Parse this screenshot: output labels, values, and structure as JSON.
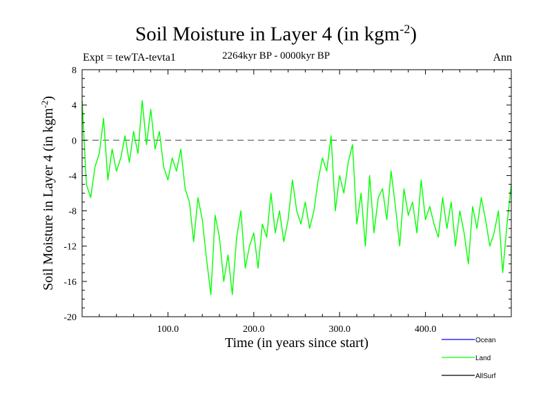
{
  "header": {
    "title": "Soil Moisture in Layer 4 (in kgm",
    "title_sup": "-2",
    "title_end": ")",
    "expt": "Expt = tewTA-tevta1",
    "period": "2264kyr BP - 0000kyr BP",
    "season": "Ann"
  },
  "chart_data": {
    "type": "line",
    "title": "Soil Moisture in Layer 4 (in kgm-2)",
    "xlabel": "Time (in years since start)",
    "ylabel": "Soil Moisture in Layer 4 (in kgm-2)",
    "ylabel_main": "Soil Moisture in Layer 4 (in kgm",
    "ylabel_sup": "-2",
    "ylabel_end": ")",
    "xlim": [
      0,
      500
    ],
    "ylim": [
      -20,
      8
    ],
    "xticks": [
      100,
      200,
      300,
      400
    ],
    "xtick_labels": [
      "100.0",
      "200.0",
      "300.0",
      "400.0"
    ],
    "yticks": [
      -20,
      -16,
      -12,
      -8,
      -4,
      0,
      4,
      8
    ],
    "ytick_labels": [
      "-20",
      "-16",
      "-12",
      "-8",
      "-4",
      "0",
      "4",
      "8"
    ],
    "reference_line": 0,
    "legend": [
      {
        "name": "Ocean",
        "color": "#0000ff"
      },
      {
        "name": "Land",
        "color": "#00ff00"
      },
      {
        "name": "AllSurf",
        "color": "#000000"
      }
    ],
    "series": [
      {
        "name": "Land",
        "color": "#00ff00",
        "x": [
          0,
          5,
          10,
          15,
          20,
          25,
          30,
          35,
          40,
          45,
          50,
          55,
          60,
          65,
          70,
          75,
          80,
          85,
          90,
          95,
          100,
          105,
          110,
          115,
          120,
          125,
          130,
          135,
          140,
          145,
          150,
          155,
          160,
          165,
          170,
          175,
          180,
          185,
          190,
          195,
          200,
          205,
          210,
          215,
          220,
          225,
          230,
          235,
          240,
          245,
          250,
          255,
          260,
          265,
          270,
          275,
          280,
          285,
          290,
          295,
          300,
          305,
          310,
          315,
          320,
          325,
          330,
          335,
          340,
          345,
          350,
          355,
          360,
          365,
          370,
          375,
          380,
          385,
          390,
          395,
          400,
          405,
          410,
          415,
          420,
          425,
          430,
          435,
          440,
          445,
          450,
          455,
          460,
          465,
          470,
          475,
          480,
          485,
          490,
          495,
          500
        ],
        "values": [
          4.5,
          -5.0,
          -6.5,
          -3.0,
          -1.5,
          2.5,
          -4.5,
          -1.0,
          -3.5,
          -2.0,
          0.5,
          -2.5,
          1.0,
          -1.5,
          4.5,
          -0.5,
          3.5,
          -1.0,
          1.0,
          -3.0,
          -4.5,
          -2.0,
          -3.5,
          -1.0,
          -5.5,
          -7.0,
          -11.5,
          -6.5,
          -9.0,
          -13.5,
          -17.5,
          -8.5,
          -11.0,
          -16.0,
          -13.0,
          -17.5,
          -11.0,
          -8.0,
          -14.5,
          -12.0,
          -10.5,
          -14.5,
          -9.5,
          -11.0,
          -6.0,
          -10.5,
          -8.0,
          -11.5,
          -9.0,
          -4.5,
          -8.0,
          -9.5,
          -7.0,
          -10.0,
          -8.0,
          -4.5,
          -2.0,
          -3.5,
          0.5,
          -8.0,
          -4.0,
          -6.0,
          -2.5,
          -0.5,
          -9.5,
          -6.0,
          -12.0,
          -4.0,
          -10.5,
          -6.5,
          -5.5,
          -9.0,
          -3.5,
          -7.5,
          -12.0,
          -5.5,
          -8.5,
          -7.0,
          -10.5,
          -4.5,
          -9.0,
          -7.5,
          -9.5,
          -11.0,
          -6.5,
          -10.0,
          -7.0,
          -12.0,
          -8.0,
          -10.5,
          -14.0,
          -7.5,
          -10.0,
          -6.5,
          -9.0,
          -12.0,
          -10.5,
          -8.0,
          -15.0,
          -9.5,
          -5.0
        ]
      }
    ]
  }
}
